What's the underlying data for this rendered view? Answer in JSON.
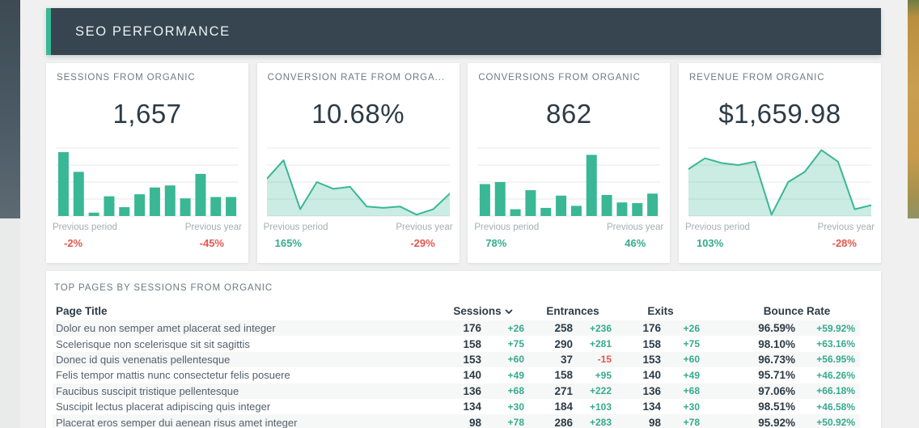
{
  "header": {
    "title": "SEO PERFORMANCE"
  },
  "colors": {
    "accent_teal": "#3ab795",
    "positive_green": "#35ab8e",
    "negative_red": "#e4564e",
    "header_bg": "#36454f",
    "area_fill": "rgba(58,183,149,0.27)",
    "gridline": "#e6e8e7"
  },
  "kpi_cards": [
    {
      "title": "SESSIONS FROM ORGANIC",
      "value": "1,657",
      "previous_period_label": "Previous period",
      "previous_period_value": "-2%",
      "previous_year_label": "Previous year",
      "previous_year_value": "-45%",
      "chart": {
        "type": "bar",
        "values_norm": [
          0.94,
          0.65,
          0.05,
          0.29,
          0.13,
          0.32,
          0.42,
          0.45,
          0.26,
          0.62,
          0.28,
          0.28
        ]
      }
    },
    {
      "title": "CONVERSION RATE FROM ORGA...",
      "value": "10.68%",
      "previous_period_label": "Previous period",
      "previous_period_value": "165%",
      "previous_year_label": "Previous year",
      "previous_year_value": "-29%",
      "chart": {
        "type": "area",
        "values_norm": [
          0.55,
          0.82,
          0.1,
          0.5,
          0.4,
          0.43,
          0.14,
          0.12,
          0.14,
          0.02,
          0.1,
          0.33
        ]
      }
    },
    {
      "title": "CONVERSIONS FROM ORGANIC",
      "value": "862",
      "previous_period_label": "Previous period",
      "previous_period_value": "78%",
      "previous_year_label": "Previous year",
      "previous_year_value": "46%",
      "chart": {
        "type": "bar",
        "values_norm": [
          0.47,
          0.5,
          0.1,
          0.38,
          0.12,
          0.3,
          0.15,
          0.9,
          0.31,
          0.2,
          0.19,
          0.33
        ]
      }
    },
    {
      "title": "REVENUE FROM ORGANIC",
      "value": "$1,659.98",
      "previous_period_label": "Previous period",
      "previous_period_value": "103%",
      "previous_year_label": "Previous year",
      "previous_year_value": "-28%",
      "chart": {
        "type": "area",
        "values_norm": [
          0.69,
          0.85,
          0.78,
          0.75,
          0.8,
          0.02,
          0.5,
          0.65,
          0.97,
          0.8,
          0.1,
          0.16
        ]
      }
    }
  ],
  "table": {
    "title": "TOP PAGES BY SESSIONS FROM ORGANIC",
    "columns": [
      "Page Title",
      "Sessions",
      "Entrances",
      "Exits",
      "Bounce Rate"
    ],
    "sort": {
      "column": "Sessions",
      "indicator": "down-chevron"
    },
    "rows": [
      {
        "page_title": "Dolor eu non semper amet placerat sed integer",
        "sessions": "176",
        "sessions_delta": "+26",
        "entrances": "258",
        "entrances_delta": "+236",
        "exits": "176",
        "exits_delta": "+26",
        "bounce_rate": "96.59%",
        "bounce_rate_delta": "+59.92%"
      },
      {
        "page_title": "Scelerisque non scelerisque sit sit sagittis",
        "sessions": "158",
        "sessions_delta": "+75",
        "entrances": "290",
        "entrances_delta": "+281",
        "exits": "158",
        "exits_delta": "+75",
        "bounce_rate": "98.10%",
        "bounce_rate_delta": "+63.16%"
      },
      {
        "page_title": "Donec id quis venenatis pellentesque",
        "sessions": "153",
        "sessions_delta": "+60",
        "entrances": "37",
        "entrances_delta": "-15",
        "exits": "153",
        "exits_delta": "+60",
        "bounce_rate": "96.73%",
        "bounce_rate_delta": "+56.95%"
      },
      {
        "page_title": "Felis tempor mattis nunc consectetur felis posuere",
        "sessions": "140",
        "sessions_delta": "+49",
        "entrances": "158",
        "entrances_delta": "+95",
        "exits": "140",
        "exits_delta": "+49",
        "bounce_rate": "95.71%",
        "bounce_rate_delta": "+46.26%"
      },
      {
        "page_title": "Faucibus suscipit tristique pellentesque",
        "sessions": "136",
        "sessions_delta": "+68",
        "entrances": "271",
        "entrances_delta": "+222",
        "exits": "136",
        "exits_delta": "+68",
        "bounce_rate": "97.06%",
        "bounce_rate_delta": "+66.18%"
      },
      {
        "page_title": "Suscipit lectus placerat adipiscing quis integer",
        "sessions": "134",
        "sessions_delta": "+30",
        "entrances": "184",
        "entrances_delta": "+103",
        "exits": "134",
        "exits_delta": "+30",
        "bounce_rate": "98.51%",
        "bounce_rate_delta": "+46.58%"
      },
      {
        "page_title": "Placerat eros semper dui aenean risus amet integer",
        "sessions": "98",
        "sessions_delta": "+78",
        "entrances": "286",
        "entrances_delta": "+283",
        "exits": "98",
        "exits_delta": "+78",
        "bounce_rate": "95.92%",
        "bounce_rate_delta": "+50.92%"
      }
    ]
  }
}
